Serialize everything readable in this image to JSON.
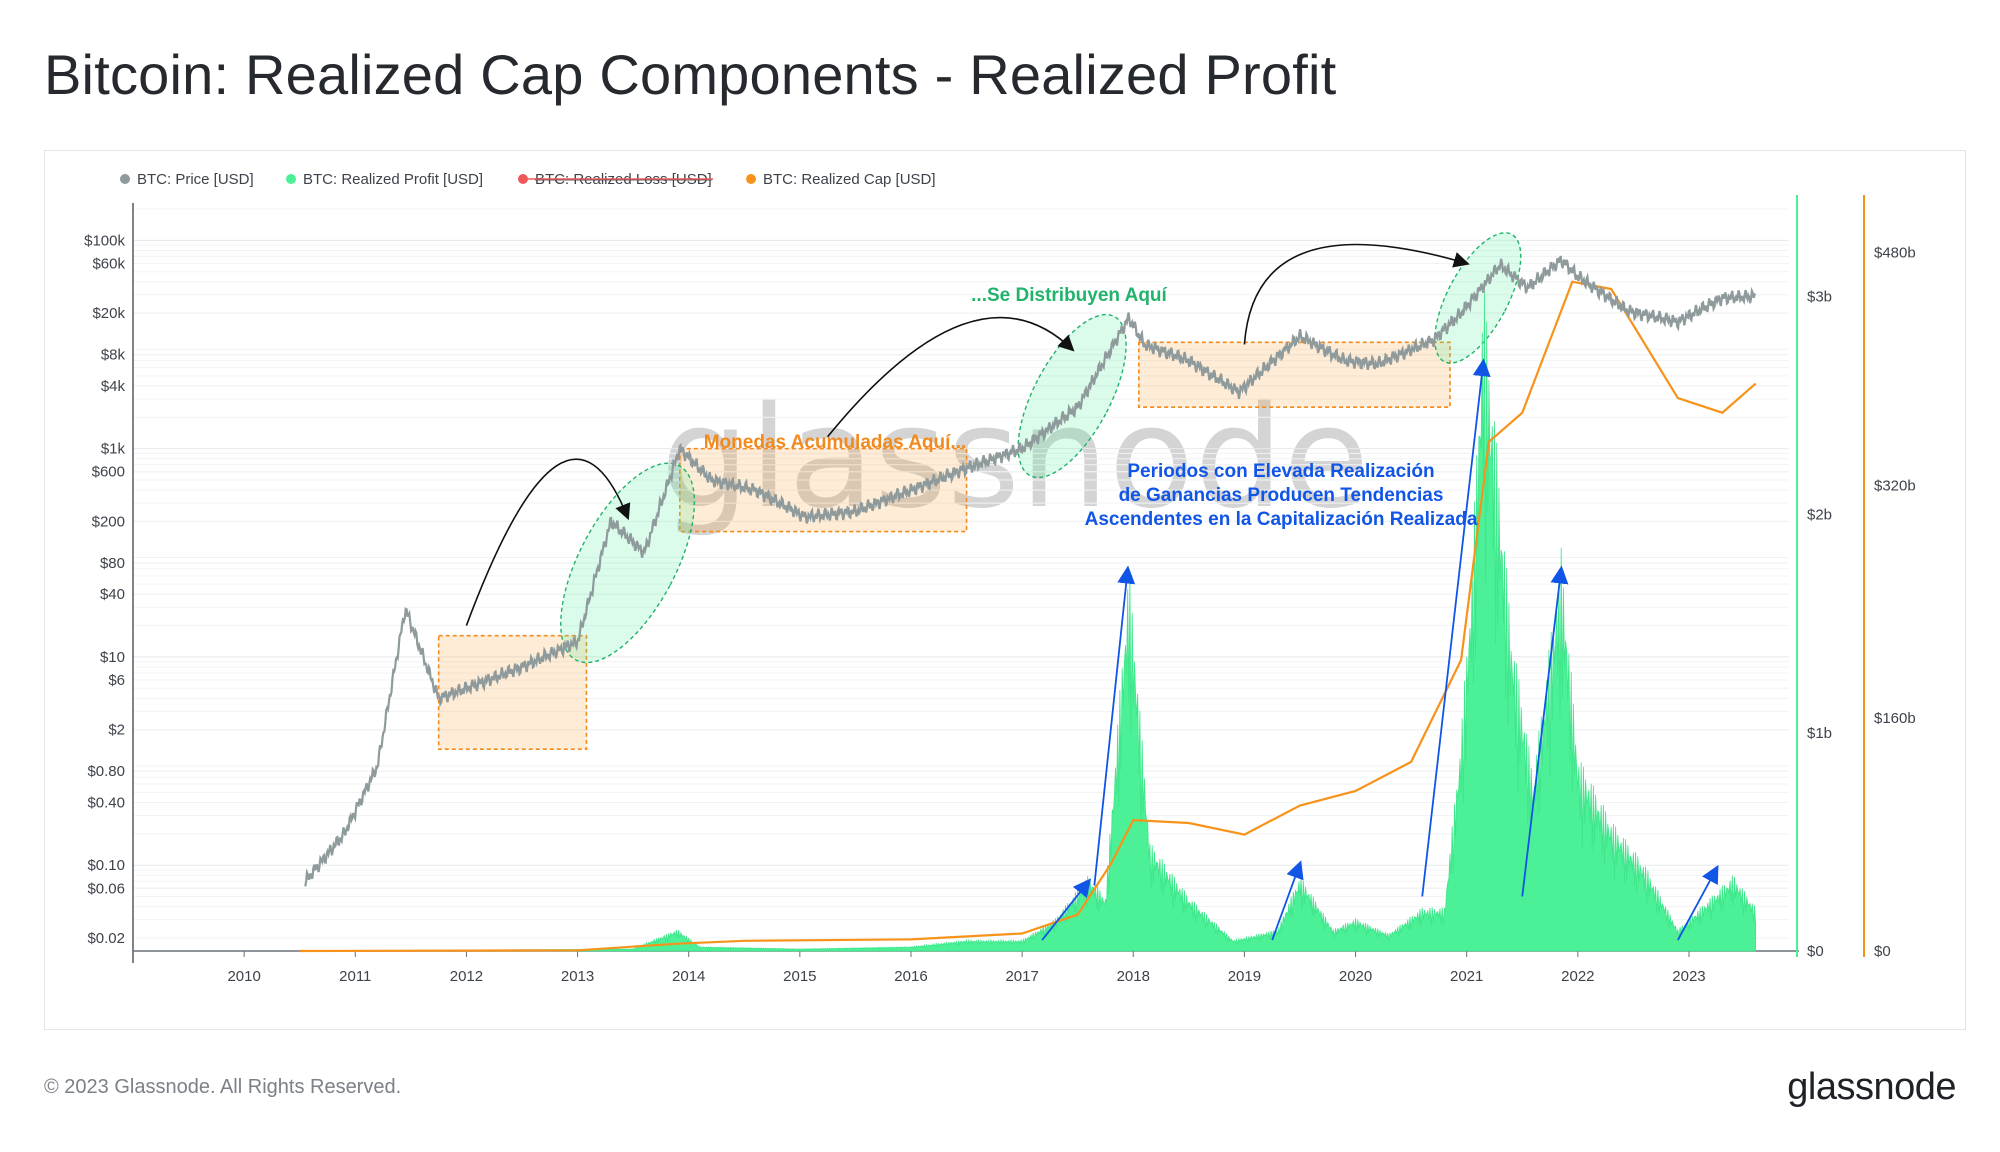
{
  "page": {
    "title": "Bitcoin: Realized Cap Components - Realized Profit",
    "copyright": "© 2023 Glassnode. All Rights Reserved.",
    "logo": "glassnode",
    "watermark": "glassnode"
  },
  "chart_data": {
    "type": "line",
    "legend": [
      {
        "label": "BTC: Price [USD]",
        "color": "#8e9a9b",
        "strikethrough": false
      },
      {
        "label": "BTC: Realized Profit [USD]",
        "color": "#4cf096",
        "strikethrough": false
      },
      {
        "label": "BTC: Realized Loss [USD]",
        "color": "#ee5a5a",
        "strikethrough": true
      },
      {
        "label": "BTC: Realized Cap [USD]",
        "color": "#f7931a",
        "strikethrough": false
      }
    ],
    "x_ticks": [
      "2010",
      "2011",
      "2012",
      "2013",
      "2014",
      "2015",
      "2016",
      "2017",
      "2018",
      "2019",
      "2020",
      "2021",
      "2022",
      "2023"
    ],
    "y_left_ticks": [
      "$100k",
      "$60k",
      "$20k",
      "$8k",
      "$4k",
      "$1k",
      "$600",
      "$200",
      "$80",
      "$40",
      "$10",
      "$6",
      "$2",
      "$0.80",
      "$0.40",
      "$0.10",
      "$0.06",
      "$0.02"
    ],
    "y_left_scale": "log",
    "y_mid_ticks": [
      "$3b",
      "$2b",
      "$1b",
      "$0"
    ],
    "y_right_ticks": [
      "$480b",
      "$320b",
      "$160b",
      "$0"
    ],
    "annotations": {
      "accumulated": "Monedas Acumuladas Aquí...",
      "distributed": "...Se Distribuyen Aquí",
      "note_line1": "Periodos con Elevada Realización",
      "note_line2": "de Ganancias Producen Tendencias",
      "note_line3": "Ascendentes en la Capitalización Realizada"
    },
    "series": [
      {
        "name": "BTC: Price [USD]",
        "axis": "left",
        "x": [
          2010.55,
          2010.9,
          2011.2,
          2011.45,
          2011.75,
          2012.0,
          2012.5,
          2013.0,
          2013.3,
          2013.6,
          2013.92,
          2014.2,
          2014.6,
          2015.05,
          2015.5,
          2016.0,
          2016.5,
          2017.0,
          2017.5,
          2017.96,
          2018.1,
          2018.5,
          2018.95,
          2019.5,
          2019.9,
          2020.2,
          2020.7,
          2020.95,
          2021.3,
          2021.55,
          2021.85,
          2022.0,
          2022.45,
          2022.9,
          2023.3,
          2023.6
        ],
        "y": [
          0.07,
          0.2,
          0.9,
          29,
          4,
          5,
          8,
          14,
          200,
          100,
          1000,
          500,
          400,
          220,
          250,
          400,
          650,
          1000,
          2500,
          18000,
          10000,
          7000,
          3500,
          12000,
          7000,
          6500,
          11000,
          20000,
          58000,
          35000,
          65000,
          45000,
          21000,
          16500,
          28000,
          29000
        ]
      },
      {
        "name": "BTC: Realized Cap [USD]",
        "axis": "right",
        "x": [
          2010.5,
          2013.0,
          2013.9,
          2014.5,
          2016.0,
          2017.0,
          2017.5,
          2017.8,
          2018.0,
          2018.5,
          2019.0,
          2019.5,
          2020.0,
          2020.5,
          2020.95,
          2021.2,
          2021.5,
          2021.95,
          2022.3,
          2022.9,
          2023.3,
          2023.6
        ],
        "y": [
          0,
          0.5,
          5,
          7,
          8,
          12,
          25,
          60,
          90,
          88,
          80,
          100,
          110,
          130,
          200,
          350,
          370,
          460,
          455,
          380,
          370,
          390
        ]
      },
      {
        "name": "BTC: Realized Profit [USD]",
        "axis": "mid",
        "x": [
          2010.5,
          2013.5,
          2013.9,
          2014.1,
          2015.0,
          2016.0,
          2016.5,
          2017.0,
          2017.3,
          2017.6,
          2017.75,
          2017.96,
          2018.15,
          2018.5,
          2018.9,
          2019.3,
          2019.5,
          2019.8,
          2020.0,
          2020.3,
          2020.6,
          2020.8,
          2020.95,
          2021.05,
          2021.15,
          2021.4,
          2021.6,
          2021.85,
          2022.0,
          2022.3,
          2022.6,
          2022.9,
          2023.2,
          2023.4,
          2023.6
        ],
        "y": [
          0,
          0.01,
          0.1,
          0.02,
          0.01,
          0.02,
          0.05,
          0.05,
          0.15,
          0.35,
          0.25,
          1.78,
          0.5,
          0.25,
          0.05,
          0.1,
          0.35,
          0.1,
          0.15,
          0.08,
          0.2,
          0.2,
          1.0,
          1.8,
          3.1,
          1.5,
          0.8,
          1.85,
          0.9,
          0.6,
          0.4,
          0.1,
          0.25,
          0.35,
          0.2
        ]
      }
    ]
  }
}
